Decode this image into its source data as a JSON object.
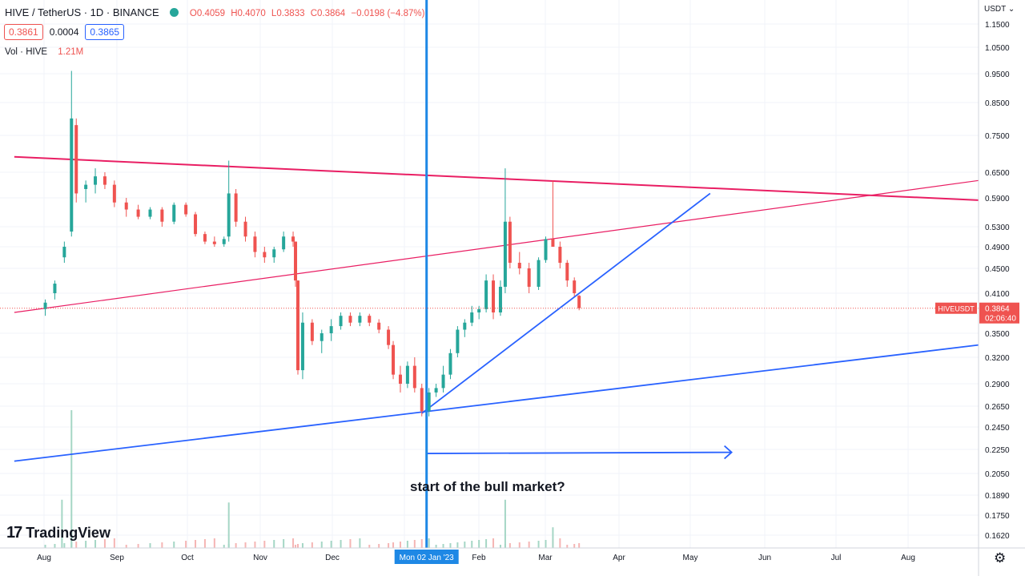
{
  "legend": {
    "symbol": "HIVE / TetherUS · 1D · BINANCE",
    "open": "O0.4059",
    "high": "H0.4070",
    "low": "L0.3833",
    "close": "C0.3864",
    "change": "−0.0198 (−4.87%)",
    "bid": "0.3861",
    "spread": "0.0004",
    "ask": "0.3865",
    "volume_label": "Vol · HIVE",
    "volume_value": "1.21M"
  },
  "price_axis": {
    "currency": "USDT",
    "ticks": [
      "1.1500",
      "1.0500",
      "0.9500",
      "0.8500",
      "0.7500",
      "0.6500",
      "0.5900",
      "0.5300",
      "0.4900",
      "0.4500",
      "0.4100",
      "0.3500",
      "0.3200",
      "0.2900",
      "0.2650",
      "0.2450",
      "0.2250",
      "0.2050",
      "0.1890",
      "0.1750",
      "0.1620"
    ],
    "last_label": "HIVEUSDT",
    "last_value": "0.3864",
    "countdown": "02:06:40"
  },
  "time_axis": {
    "labels": [
      "Aug",
      "Sep",
      "Oct",
      "Nov",
      "Dec",
      "Feb",
      "Mar",
      "Apr",
      "May",
      "Jun",
      "Jul",
      "Aug"
    ],
    "crosshair_label": "Mon 02 Jan '23"
  },
  "annotation": "start of the bull market?",
  "branding": {
    "name": "TradingView"
  },
  "colors": {
    "up": "#26a69a",
    "down": "#ef5350",
    "pink": "#e91e63",
    "blue": "#2962ff",
    "crosshair": "#1e88e5"
  },
  "chart_data": {
    "type": "candlestick",
    "symbol": "HIVEUSDT",
    "interval": "1D",
    "exchange": "BINANCE",
    "y_scale": "log",
    "ylim": [
      0.155,
      1.2
    ],
    "x_range": [
      "2022-07-13",
      "2023-09-20"
    ],
    "series": [
      {
        "t": "2022-07-26",
        "o": 0.385,
        "h": 0.4,
        "l": 0.375,
        "c": 0.395
      },
      {
        "t": "2022-07-30",
        "o": 0.41,
        "h": 0.43,
        "l": 0.4,
        "c": 0.425
      },
      {
        "t": "2022-08-03",
        "o": 0.47,
        "h": 0.5,
        "l": 0.46,
        "c": 0.49
      },
      {
        "t": "2022-08-06",
        "o": 0.52,
        "h": 0.96,
        "l": 0.51,
        "c": 0.8
      },
      {
        "t": "2022-08-08",
        "o": 0.78,
        "h": 0.8,
        "l": 0.58,
        "c": 0.6
      },
      {
        "t": "2022-08-12",
        "o": 0.61,
        "h": 0.63,
        "l": 0.58,
        "c": 0.62
      },
      {
        "t": "2022-08-16",
        "o": 0.62,
        "h": 0.66,
        "l": 0.6,
        "c": 0.64
      },
      {
        "t": "2022-08-20",
        "o": 0.64,
        "h": 0.65,
        "l": 0.61,
        "c": 0.62
      },
      {
        "t": "2022-08-24",
        "o": 0.62,
        "h": 0.63,
        "l": 0.57,
        "c": 0.58
      },
      {
        "t": "2022-08-29",
        "o": 0.58,
        "h": 0.59,
        "l": 0.55,
        "c": 0.565
      },
      {
        "t": "2022-09-03",
        "o": 0.565,
        "h": 0.575,
        "l": 0.545,
        "c": 0.55
      },
      {
        "t": "2022-09-08",
        "o": 0.55,
        "h": 0.57,
        "l": 0.545,
        "c": 0.565
      },
      {
        "t": "2022-09-13",
        "o": 0.565,
        "h": 0.57,
        "l": 0.53,
        "c": 0.54
      },
      {
        "t": "2022-09-18",
        "o": 0.54,
        "h": 0.58,
        "l": 0.535,
        "c": 0.575
      },
      {
        "t": "2022-09-23",
        "o": 0.575,
        "h": 0.58,
        "l": 0.55,
        "c": 0.555
      },
      {
        "t": "2022-09-27",
        "o": 0.555,
        "h": 0.56,
        "l": 0.51,
        "c": 0.515
      },
      {
        "t": "2022-10-01",
        "o": 0.515,
        "h": 0.52,
        "l": 0.495,
        "c": 0.5
      },
      {
        "t": "2022-10-05",
        "o": 0.5,
        "h": 0.51,
        "l": 0.49,
        "c": 0.495
      },
      {
        "t": "2022-10-09",
        "o": 0.495,
        "h": 0.51,
        "l": 0.49,
        "c": 0.505
      },
      {
        "t": "2022-10-11",
        "o": 0.51,
        "h": 0.68,
        "l": 0.5,
        "c": 0.6
      },
      {
        "t": "2022-10-14",
        "o": 0.6,
        "h": 0.61,
        "l": 0.53,
        "c": 0.54
      },
      {
        "t": "2022-10-18",
        "o": 0.54,
        "h": 0.55,
        "l": 0.5,
        "c": 0.51
      },
      {
        "t": "2022-10-22",
        "o": 0.51,
        "h": 0.52,
        "l": 0.47,
        "c": 0.48
      },
      {
        "t": "2022-10-26",
        "o": 0.48,
        "h": 0.49,
        "l": 0.46,
        "c": 0.47
      },
      {
        "t": "2022-10-30",
        "o": 0.47,
        "h": 0.49,
        "l": 0.46,
        "c": 0.485
      },
      {
        "t": "2022-11-03",
        "o": 0.485,
        "h": 0.52,
        "l": 0.48,
        "c": 0.51
      },
      {
        "t": "2022-11-07",
        "o": 0.51,
        "h": 0.52,
        "l": 0.49,
        "c": 0.5
      },
      {
        "t": "2022-11-08",
        "o": 0.5,
        "h": 0.5,
        "l": 0.42,
        "c": 0.43
      },
      {
        "t": "2022-11-09",
        "o": 0.43,
        "h": 0.43,
        "l": 0.3,
        "c": 0.305
      },
      {
        "t": "2022-11-11",
        "o": 0.305,
        "h": 0.38,
        "l": 0.295,
        "c": 0.365
      },
      {
        "t": "2022-11-15",
        "o": 0.365,
        "h": 0.37,
        "l": 0.335,
        "c": 0.34
      },
      {
        "t": "2022-11-19",
        "o": 0.34,
        "h": 0.355,
        "l": 0.325,
        "c": 0.35
      },
      {
        "t": "2022-11-23",
        "o": 0.35,
        "h": 0.37,
        "l": 0.34,
        "c": 0.36
      },
      {
        "t": "2022-11-27",
        "o": 0.36,
        "h": 0.38,
        "l": 0.355,
        "c": 0.375
      },
      {
        "t": "2022-12-01",
        "o": 0.375,
        "h": 0.38,
        "l": 0.36,
        "c": 0.365
      },
      {
        "t": "2022-12-05",
        "o": 0.365,
        "h": 0.38,
        "l": 0.36,
        "c": 0.375
      },
      {
        "t": "2022-12-09",
        "o": 0.375,
        "h": 0.378,
        "l": 0.36,
        "c": 0.365
      },
      {
        "t": "2022-12-13",
        "o": 0.365,
        "h": 0.37,
        "l": 0.35,
        "c": 0.355
      },
      {
        "t": "2022-12-17",
        "o": 0.355,
        "h": 0.36,
        "l": 0.33,
        "c": 0.335
      },
      {
        "t": "2022-12-19",
        "o": 0.335,
        "h": 0.34,
        "l": 0.295,
        "c": 0.3
      },
      {
        "t": "2022-12-22",
        "o": 0.3,
        "h": 0.31,
        "l": 0.28,
        "c": 0.29
      },
      {
        "t": "2022-12-25",
        "o": 0.29,
        "h": 0.315,
        "l": 0.285,
        "c": 0.31
      },
      {
        "t": "2022-12-28",
        "o": 0.31,
        "h": 0.32,
        "l": 0.28,
        "c": 0.285
      },
      {
        "t": "2022-12-31",
        "o": 0.285,
        "h": 0.29,
        "l": 0.255,
        "c": 0.26
      },
      {
        "t": "2023-01-03",
        "o": 0.26,
        "h": 0.285,
        "l": 0.255,
        "c": 0.28
      },
      {
        "t": "2023-01-06",
        "o": 0.28,
        "h": 0.29,
        "l": 0.275,
        "c": 0.285
      },
      {
        "t": "2023-01-09",
        "o": 0.285,
        "h": 0.31,
        "l": 0.28,
        "c": 0.3
      },
      {
        "t": "2023-01-12",
        "o": 0.3,
        "h": 0.33,
        "l": 0.295,
        "c": 0.325
      },
      {
        "t": "2023-01-15",
        "o": 0.325,
        "h": 0.36,
        "l": 0.32,
        "c": 0.355
      },
      {
        "t": "2023-01-18",
        "o": 0.355,
        "h": 0.37,
        "l": 0.345,
        "c": 0.365
      },
      {
        "t": "2023-01-21",
        "o": 0.365,
        "h": 0.39,
        "l": 0.36,
        "c": 0.38
      },
      {
        "t": "2023-01-24",
        "o": 0.38,
        "h": 0.39,
        "l": 0.37,
        "c": 0.385
      },
      {
        "t": "2023-01-27",
        "o": 0.385,
        "h": 0.44,
        "l": 0.38,
        "c": 0.43
      },
      {
        "t": "2023-01-30",
        "o": 0.43,
        "h": 0.44,
        "l": 0.37,
        "c": 0.38
      },
      {
        "t": "2023-02-02",
        "o": 0.38,
        "h": 0.43,
        "l": 0.375,
        "c": 0.42
      },
      {
        "t": "2023-02-04",
        "o": 0.42,
        "h": 0.66,
        "l": 0.41,
        "c": 0.54
      },
      {
        "t": "2023-02-06",
        "o": 0.54,
        "h": 0.55,
        "l": 0.45,
        "c": 0.46
      },
      {
        "t": "2023-02-10",
        "o": 0.46,
        "h": 0.48,
        "l": 0.44,
        "c": 0.45
      },
      {
        "t": "2023-02-14",
        "o": 0.45,
        "h": 0.46,
        "l": 0.41,
        "c": 0.42
      },
      {
        "t": "2023-02-18",
        "o": 0.42,
        "h": 0.47,
        "l": 0.415,
        "c": 0.465
      },
      {
        "t": "2023-02-21",
        "o": 0.465,
        "h": 0.51,
        "l": 0.46,
        "c": 0.505
      },
      {
        "t": "2023-02-24",
        "o": 0.505,
        "h": 0.63,
        "l": 0.49,
        "c": 0.49
      },
      {
        "t": "2023-02-27",
        "o": 0.49,
        "h": 0.5,
        "l": 0.45,
        "c": 0.46
      },
      {
        "t": "2023-03-02",
        "o": 0.46,
        "h": 0.465,
        "l": 0.42,
        "c": 0.43
      },
      {
        "t": "2023-03-05",
        "o": 0.43,
        "h": 0.435,
        "l": 0.405,
        "c": 0.41
      },
      {
        "t": "2023-03-07",
        "o": 0.4059,
        "h": 0.407,
        "l": 0.3833,
        "c": 0.3864
      }
    ],
    "volume_spikes": [
      {
        "t": "2022-08-06",
        "v": 1.0
      },
      {
        "t": "2022-08-02",
        "v": 0.35
      },
      {
        "t": "2022-10-11",
        "v": 0.33
      },
      {
        "t": "2023-02-04",
        "v": 0.35
      },
      {
        "t": "2023-02-24",
        "v": 0.15
      }
    ],
    "drawings": {
      "pink_lines": [
        {
          "from": {
            "t": "2022-07-13",
            "p": 0.69
          },
          "to": {
            "t": "2023-09-20",
            "p": 0.585
          }
        },
        {
          "from": {
            "t": "2022-07-13",
            "p": 0.38
          },
          "to": {
            "t": "2023-09-20",
            "p": 0.63
          }
        }
      ],
      "blue_lines": [
        {
          "from": {
            "t": "2022-07-13",
            "p": 0.215
          },
          "to": {
            "t": "2023-09-20",
            "p": 0.335
          }
        },
        {
          "from": {
            "t": "2022-12-31",
            "p": 0.258
          },
          "to": {
            "t": "2023-05-01",
            "p": 0.6
          }
        }
      ],
      "arrow": {
        "from": {
          "t": "2023-01-02",
          "p": 0.2215
        },
        "to": {
          "t": "2023-05-10",
          "p": 0.2225
        }
      },
      "vertical_line": "2023-01-02"
    }
  }
}
